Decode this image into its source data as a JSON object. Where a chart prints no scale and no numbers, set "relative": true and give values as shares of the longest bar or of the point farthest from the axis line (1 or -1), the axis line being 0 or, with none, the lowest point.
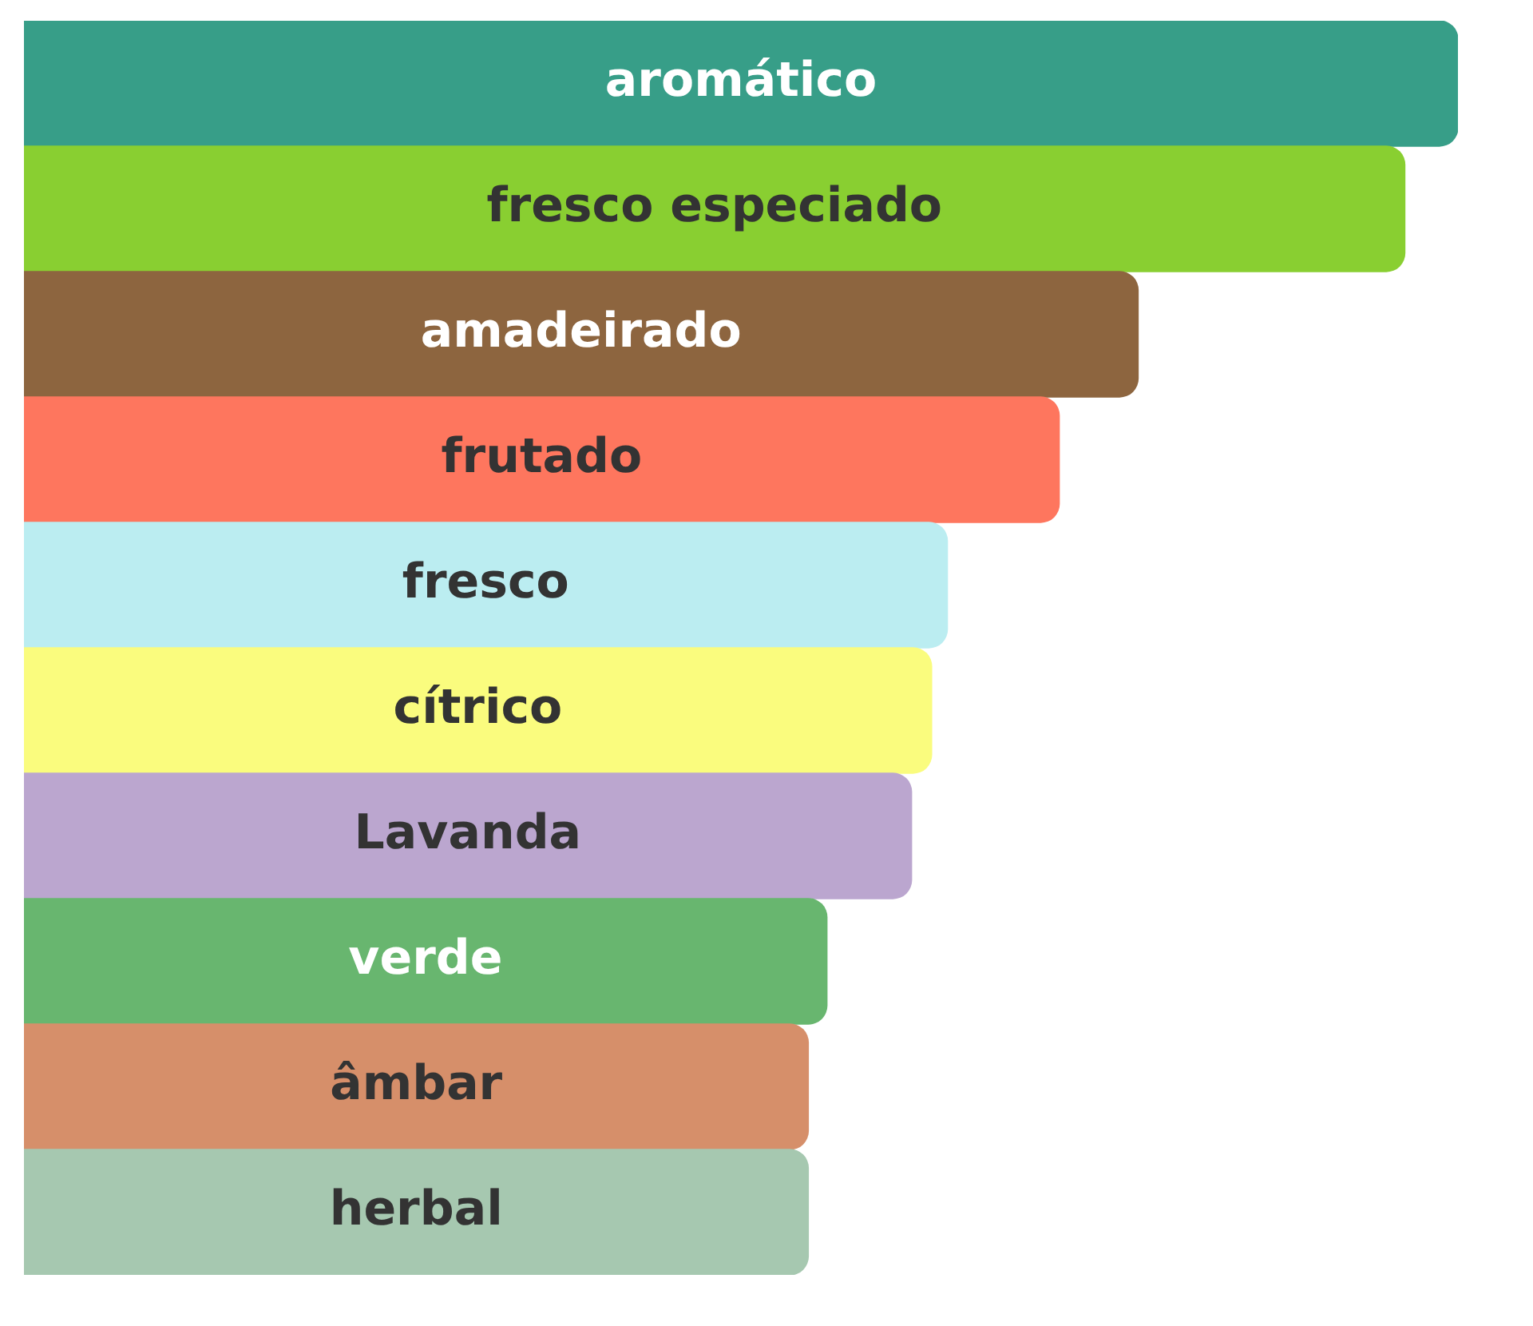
{
  "chart_data": {
    "type": "bar",
    "orientation": "horizontal",
    "relative": true,
    "categories": [
      "aromático",
      "fresco especiado",
      "amadeirado",
      "frutado",
      "fresco",
      "cítrico",
      "Lavanda",
      "verde",
      "âmbar",
      "herbal"
    ],
    "values": [
      1,
      0.963,
      0.777,
      0.722,
      0.644,
      0.633,
      0.619,
      0.56,
      0.547,
      0.547
    ],
    "colors": [
      "#379e88",
      "#89cf31",
      "#8d653f",
      "#fe765e",
      "#bbedf1",
      "#fafc7e",
      "#bba6cf",
      "#68b66f",
      "#d68f6a",
      "#a6c8b0"
    ],
    "legend": false
  }
}
